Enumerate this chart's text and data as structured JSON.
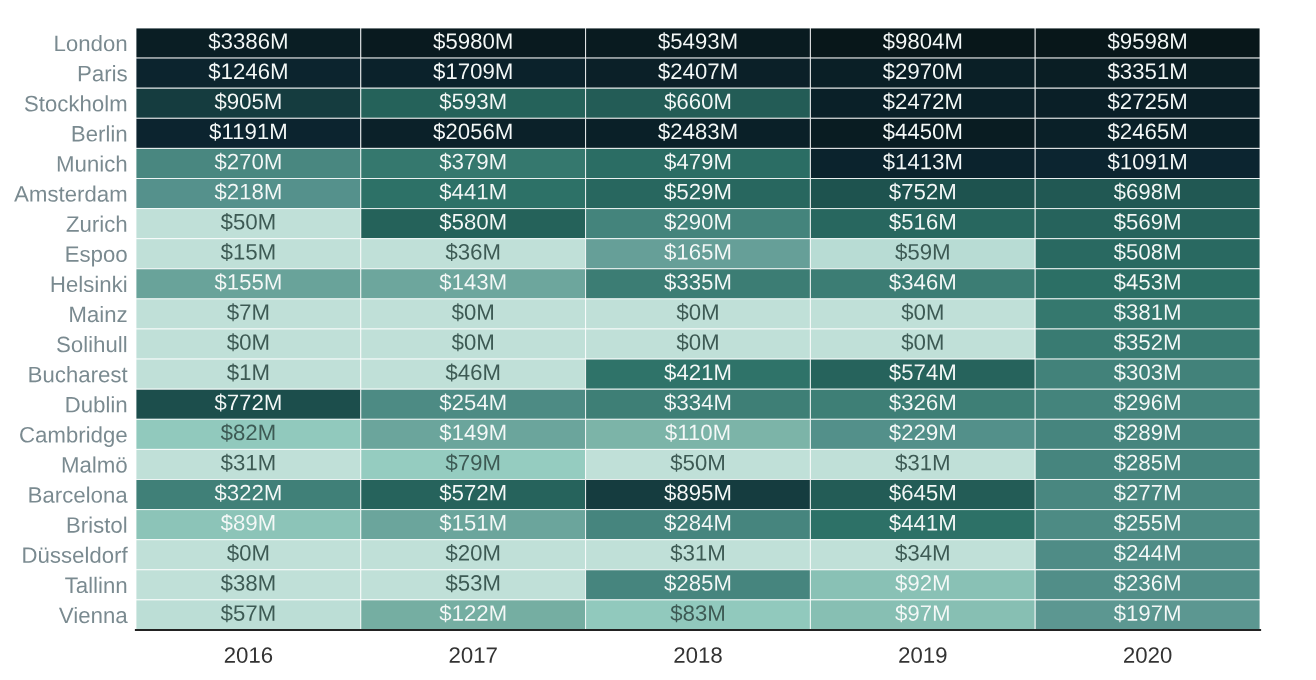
{
  "chart_data": {
    "type": "heatmap",
    "categories": [
      "2016",
      "2017",
      "2018",
      "2019",
      "2020"
    ],
    "y_categories": [
      "London",
      "Paris",
      "Stockholm",
      "Berlin",
      "Munich",
      "Amsterdam",
      "Zurich",
      "Espoo",
      "Helsinki",
      "Mainz",
      "Solihull",
      "Bucharest",
      "Dublin",
      "Cambridge",
      "Malmö",
      "Barcelona",
      "Bristol",
      "Düsseldorf",
      "Tallinn",
      "Vienna"
    ],
    "cells": [
      [
        3386,
        5980,
        5493,
        9804,
        9598
      ],
      [
        1246,
        1709,
        2407,
        2970,
        3351
      ],
      [
        905,
        593,
        660,
        2472,
        2725
      ],
      [
        1191,
        2056,
        2483,
        4450,
        2465
      ],
      [
        270,
        379,
        479,
        1413,
        1091
      ],
      [
        218,
        441,
        529,
        752,
        698
      ],
      [
        50,
        580,
        290,
        516,
        569
      ],
      [
        15,
        36,
        165,
        59,
        508
      ],
      [
        155,
        143,
        335,
        346,
        453
      ],
      [
        7,
        0,
        0,
        0,
        381
      ],
      [
        0,
        0,
        0,
        0,
        352
      ],
      [
        1,
        46,
        421,
        574,
        303
      ],
      [
        772,
        254,
        334,
        326,
        296
      ],
      [
        82,
        149,
        110,
        229,
        289
      ],
      [
        31,
        79,
        50,
        31,
        285
      ],
      [
        322,
        572,
        895,
        645,
        277
      ],
      [
        89,
        151,
        284,
        441,
        255
      ],
      [
        0,
        20,
        31,
        34,
        244
      ],
      [
        38,
        53,
        285,
        92,
        236
      ],
      [
        57,
        122,
        83,
        97,
        197
      ]
    ],
    "cell_labels": [
      [
        "$3386M",
        "$5980M",
        "$5493M",
        "$9804M",
        "$9598M"
      ],
      [
        "$1246M",
        "$1709M",
        "$2407M",
        "$2970M",
        "$3351M"
      ],
      [
        "$905M",
        "$593M",
        "$660M",
        "$2472M",
        "$2725M"
      ],
      [
        "$1191M",
        "$2056M",
        "$2483M",
        "$4450M",
        "$2465M"
      ],
      [
        "$270M",
        "$379M",
        "$479M",
        "$1413M",
        "$1091M"
      ],
      [
        "$218M",
        "$441M",
        "$529M",
        "$752M",
        "$698M"
      ],
      [
        "$50M",
        "$580M",
        "$290M",
        "$516M",
        "$569M"
      ],
      [
        "$15M",
        "$36M",
        "$165M",
        "$59M",
        "$508M"
      ],
      [
        "$155M",
        "$143M",
        "$335M",
        "$346M",
        "$453M"
      ],
      [
        "$7M",
        "$0M",
        "$0M",
        "$0M",
        "$381M"
      ],
      [
        "$0M",
        "$0M",
        "$0M",
        "$0M",
        "$352M"
      ],
      [
        "$1M",
        "$46M",
        "$421M",
        "$574M",
        "$303M"
      ],
      [
        "$772M",
        "$254M",
        "$334M",
        "$326M",
        "$296M"
      ],
      [
        "$82M",
        "$149M",
        "$110M",
        "$229M",
        "$289M"
      ],
      [
        "$31M",
        "$79M",
        "$50M",
        "$31M",
        "$285M"
      ],
      [
        "$322M",
        "$572M",
        "$895M",
        "$645M",
        "$277M"
      ],
      [
        "$89M",
        "$151M",
        "$284M",
        "$441M",
        "$255M"
      ],
      [
        "$0M",
        "$20M",
        "$31M",
        "$34M",
        "$244M"
      ],
      [
        "$38M",
        "$53M",
        "$285M",
        "$92M",
        "$236M"
      ],
      [
        "$57M",
        "$122M",
        "$83M",
        "$97M",
        "$197M"
      ]
    ]
  }
}
